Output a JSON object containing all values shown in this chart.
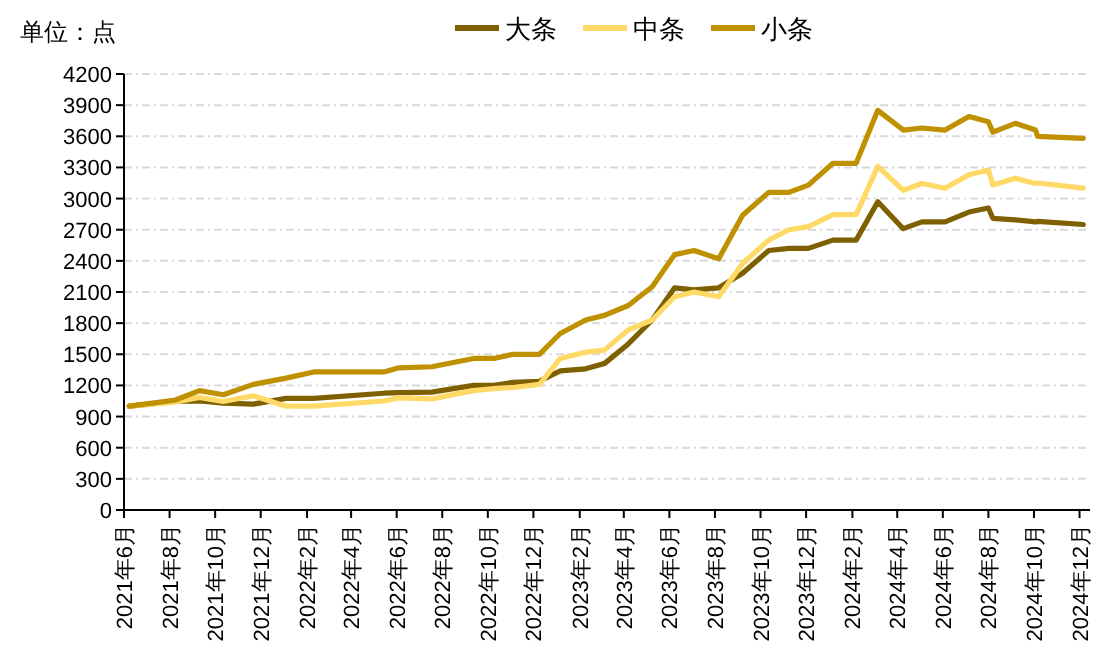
{
  "chart_data": {
    "type": "line",
    "ylabel": "单位：点",
    "legend": "top",
    "grid": "y",
    "marker": "none",
    "line_style": "solid",
    "x": [
      "2021-06-08",
      "2021-08-09",
      "2021-09-10",
      "2021-10-12",
      "2021-11-21",
      "2022-01-04",
      "2022-02-10",
      "2022-05-15",
      "2022-06-04",
      "2022-07-18",
      "2022-09-12",
      "2022-10-09",
      "2022-11-04",
      "2022-12-09",
      "2023-01-06",
      "2023-02-09",
      "2023-03-06",
      "2023-04-07",
      "2023-05-09",
      "2023-06-08",
      "2023-07-04",
      "2023-08-06",
      "2023-09-07",
      "2023-10-12",
      "2023-11-08",
      "2023-12-04",
      "2024-01-06",
      "2024-02-06",
      "2024-03-06",
      "2024-04-09",
      "2024-05-04",
      "2024-06-04",
      "2024-07-06",
      "2024-08-01",
      "2024-08-07",
      "2024-09-06",
      "2024-10-03",
      "2024-10-06",
      "2024-12-06"
    ],
    "series": [
      {
        "name": "大条",
        "color": "#7f6000",
        "values": [
          1000,
          1045,
          1050,
          1030,
          1020,
          1075,
          1075,
          1125,
          1130,
          1135,
          1200,
          1200,
          1230,
          1240,
          1340,
          1360,
          1410,
          1600,
          1830,
          2140,
          2120,
          2140,
          2280,
          2500,
          2520,
          2520,
          2600,
          2600,
          2970,
          2710,
          2775,
          2775,
          2870,
          2910,
          2810,
          2795,
          2775,
          2780,
          2750
        ]
      },
      {
        "name": "中条",
        "color": "#ffd966",
        "values": [
          1000,
          1040,
          1085,
          1045,
          1100,
          1000,
          1000,
          1050,
          1080,
          1070,
          1150,
          1170,
          1180,
          1210,
          1460,
          1520,
          1540,
          1735,
          1830,
          2055,
          2100,
          2055,
          2375,
          2600,
          2700,
          2730,
          2845,
          2845,
          3310,
          3080,
          3145,
          3100,
          3230,
          3275,
          3130,
          3195,
          3145,
          3150,
          3100
        ]
      },
      {
        "name": "小条",
        "color": "#bf9000",
        "values": [
          1000,
          1060,
          1150,
          1110,
          1210,
          1270,
          1330,
          1330,
          1370,
          1380,
          1460,
          1460,
          1500,
          1500,
          1700,
          1830,
          1875,
          1970,
          2150,
          2460,
          2500,
          2420,
          2840,
          3060,
          3060,
          3130,
          3340,
          3340,
          3850,
          3660,
          3680,
          3660,
          3790,
          3740,
          3640,
          3725,
          3660,
          3600,
          3580
        ]
      }
    ],
    "xlim": [
      "2021-06",
      "2024-12-15"
    ],
    "xticks": [
      {
        "value": "2021-06",
        "label": "2021年6月"
      },
      {
        "value": "2021-08",
        "label": "2021年8月"
      },
      {
        "value": "2021-10",
        "label": "2021年10月"
      },
      {
        "value": "2021-12",
        "label": "2021年12月"
      },
      {
        "value": "2022-02",
        "label": "2022年2月"
      },
      {
        "value": "2022-04",
        "label": "2022年4月"
      },
      {
        "value": "2022-06",
        "label": "2022年6月"
      },
      {
        "value": "2022-08",
        "label": "2022年8月"
      },
      {
        "value": "2022-10",
        "label": "2022年10月"
      },
      {
        "value": "2022-12",
        "label": "2022年12月"
      },
      {
        "value": "2023-02",
        "label": "2023年2月"
      },
      {
        "value": "2023-04",
        "label": "2023年4月"
      },
      {
        "value": "2023-06",
        "label": "2023年6月"
      },
      {
        "value": "2023-08",
        "label": "2023年8月"
      },
      {
        "value": "2023-10",
        "label": "2023年10月"
      },
      {
        "value": "2023-12",
        "label": "2023年12月"
      },
      {
        "value": "2024-02",
        "label": "2024年2月"
      },
      {
        "value": "2024-04",
        "label": "2024年4月"
      },
      {
        "value": "2024-06",
        "label": "2024年6月"
      },
      {
        "value": "2024-08",
        "label": "2024年8月"
      },
      {
        "value": "2024-10",
        "label": "2024年10月"
      },
      {
        "value": "2024-12",
        "label": "2024年12月"
      }
    ],
    "ylim": [
      0,
      4200
    ],
    "yticks": [
      0,
      300,
      600,
      900,
      1200,
      1500,
      1800,
      2100,
      2400,
      2700,
      3000,
      3300,
      3600,
      3900,
      4200
    ]
  }
}
